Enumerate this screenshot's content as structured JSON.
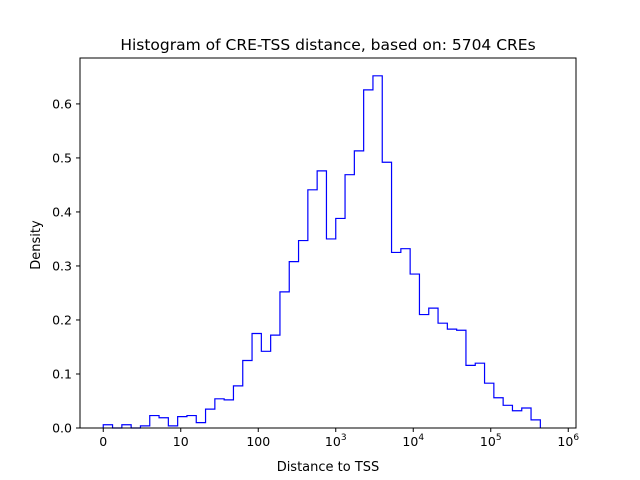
{
  "chart_data": {
    "type": "histogram-step",
    "title": "Histogram of CRE-TSS distance, based on: 5704 CREs",
    "xlabel": "Distance to TSS",
    "ylabel": "Density",
    "xscale": "symlog",
    "xlim": [
      -0.3,
      6.1
    ],
    "ylim": [
      0,
      0.685
    ],
    "grid": false,
    "line_color": "#0000ff",
    "x_ticks": [
      {
        "value": 0,
        "base": "0",
        "exp": ""
      },
      {
        "value": 1,
        "base": "10",
        "exp": ""
      },
      {
        "value": 2,
        "base": "100",
        "exp": ""
      },
      {
        "value": 3,
        "base": "10",
        "exp": "3"
      },
      {
        "value": 4,
        "base": "10",
        "exp": "4"
      },
      {
        "value": 5,
        "base": "10",
        "exp": "5"
      },
      {
        "value": 6,
        "base": "10",
        "exp": "6"
      }
    ],
    "y_ticks": [
      "0.0",
      "0.1",
      "0.2",
      "0.3",
      "0.4",
      "0.5",
      "0.6"
    ],
    "bin_edges": [
      0.0,
      0.12,
      0.24,
      0.36,
      0.48,
      0.6,
      0.72,
      0.84,
      0.96,
      1.08,
      1.2,
      1.32,
      1.44,
      1.56,
      1.68,
      1.8,
      1.92,
      2.04,
      2.16,
      2.28,
      2.4,
      2.52,
      2.64,
      2.76,
      2.88,
      3.0,
      3.12,
      3.24,
      3.36,
      3.48,
      3.6,
      3.72,
      3.84,
      3.96,
      4.08,
      4.2,
      4.32,
      4.44,
      4.56,
      4.68,
      4.8,
      4.92,
      5.04,
      5.16,
      5.28,
      5.4,
      5.52,
      5.64
    ],
    "densities": [
      0.006,
      0.0,
      0.006,
      0.0,
      0.004,
      0.023,
      0.019,
      0.004,
      0.021,
      0.023,
      0.01,
      0.035,
      0.054,
      0.052,
      0.078,
      0.125,
      0.175,
      0.142,
      0.172,
      0.252,
      0.308,
      0.347,
      0.441,
      0.476,
      0.35,
      0.388,
      0.469,
      0.513,
      0.626,
      0.652,
      0.492,
      0.325,
      0.332,
      0.285,
      0.21,
      0.222,
      0.194,
      0.183,
      0.181,
      0.116,
      0.12,
      0.083,
      0.056,
      0.042,
      0.032,
      0.037,
      0.015,
      0.0
    ]
  }
}
